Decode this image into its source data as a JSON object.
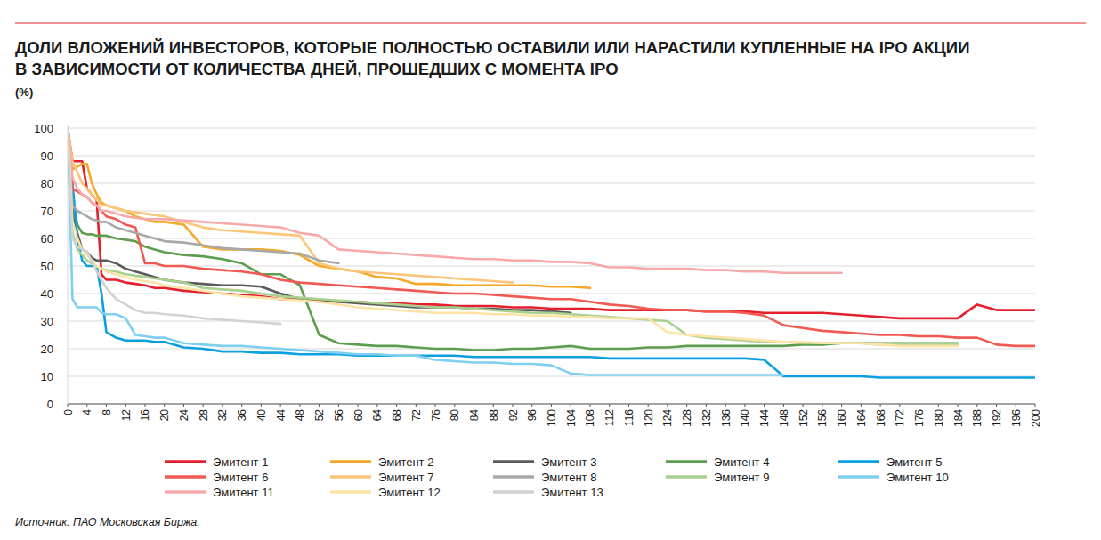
{
  "chart_data": {
    "type": "line",
    "title": [
      "ДОЛИ ВЛОЖЕНИЙ ИНВЕСТОРОВ, КОТОРЫЕ ПОЛНОСТЬЮ ОСТАВИЛИ ИЛИ НАРАСТИЛИ КУПЛЕННЫЕ НА IPO АКЦИИ",
      "В ЗАВИСИМОСТИ ОТ КОЛИЧЕСТВА ДНЕЙ, ПРОШЕДШИХ С МОМЕНТА IPO"
    ],
    "y_label": "(%)",
    "source": "Источник: ПАО Московская Биржа.",
    "grid": true,
    "legend": "bottom",
    "xlim": [
      0,
      200
    ],
    "ylim": [
      0,
      100
    ],
    "yticks": [
      0,
      10,
      20,
      30,
      40,
      50,
      60,
      70,
      80,
      90,
      100
    ],
    "xticks": [
      0,
      4,
      8,
      12,
      16,
      20,
      24,
      28,
      32,
      36,
      40,
      44,
      48,
      52,
      56,
      60,
      64,
      68,
      72,
      76,
      80,
      84,
      88,
      92,
      96,
      100,
      104,
      108,
      112,
      116,
      120,
      124,
      128,
      132,
      136,
      140,
      144,
      148,
      152,
      156,
      160,
      164,
      168,
      172,
      176,
      180,
      184,
      188,
      192,
      196,
      200
    ],
    "x": [
      0,
      1,
      2,
      3,
      4,
      5,
      6,
      7,
      8,
      10,
      12,
      14,
      16,
      18,
      20,
      24,
      28,
      32,
      36,
      40,
      44,
      48,
      52,
      56,
      60,
      64,
      68,
      72,
      76,
      80,
      84,
      88,
      92,
      96,
      100,
      104,
      108,
      112,
      116,
      120,
      124,
      128,
      132,
      136,
      140,
      144,
      148,
      152,
      156,
      160,
      164,
      168,
      172,
      176,
      180,
      184,
      188,
      192,
      196,
      200
    ],
    "series": [
      {
        "name": "Эмитент 1",
        "color": "#e3202c",
        "values": [
          100,
          88,
          88,
          88,
          78,
          76,
          74,
          47,
          45,
          45,
          44,
          43.5,
          43,
          42,
          42,
          41,
          40.5,
          40,
          39.5,
          39,
          38,
          38,
          37.5,
          37,
          37,
          36.5,
          36.5,
          36,
          36,
          35.5,
          35.5,
          35.5,
          35,
          35,
          34.5,
          34.5,
          34.5,
          34,
          34,
          34,
          34,
          34,
          33.5,
          33.5,
          33.5,
          33,
          33,
          33,
          33,
          32.5,
          32,
          31.5,
          31,
          31,
          31,
          31,
          36,
          34,
          34,
          34
        ]
      },
      {
        "name": "Эмитент 2",
        "color": "#f5a828",
        "values": [
          100,
          85,
          86,
          87,
          87,
          80,
          76,
          73,
          72,
          71,
          70,
          68,
          67,
          66,
          66,
          65,
          57,
          56,
          56,
          56,
          55.5,
          54,
          50,
          49,
          48,
          46,
          45.5,
          43.5,
          43.5,
          43,
          43,
          43,
          43,
          43,
          42.5,
          42.5,
          42,
          null,
          null,
          null,
          null,
          null,
          null,
          null,
          null,
          null,
          null,
          null,
          null,
          null,
          null,
          null,
          null,
          null,
          null,
          null,
          null,
          null,
          null,
          null
        ]
      },
      {
        "name": "Эмитент 3",
        "color": "#5b5b5b",
        "values": [
          100,
          70,
          62,
          56,
          55,
          53,
          52,
          52,
          52,
          51,
          49,
          48,
          47,
          46,
          45,
          44,
          43.5,
          43,
          43,
          42.5,
          40,
          38,
          37,
          37,
          36.5,
          36,
          35.5,
          35,
          35,
          35,
          34.5,
          34.5,
          34,
          34,
          33.5,
          33,
          null,
          null,
          null,
          null,
          null,
          null,
          null,
          null,
          null,
          null,
          null,
          null,
          null,
          null,
          null,
          null,
          null,
          null,
          null,
          null,
          null,
          null,
          null,
          null
        ]
      },
      {
        "name": "Эмитент 4",
        "color": "#5c9e4e",
        "values": [
          100,
          75,
          65,
          62,
          61.5,
          61.5,
          61,
          61,
          61,
          60,
          59.5,
          59,
          57,
          56,
          55,
          54,
          53.5,
          52.5,
          51,
          47,
          47,
          43,
          25,
          22,
          21.5,
          21,
          21,
          20.5,
          20,
          20,
          19.5,
          19.5,
          20,
          20,
          20.5,
          21,
          20,
          20,
          20,
          20.5,
          20.5,
          21,
          21,
          21,
          21,
          21,
          21,
          21.5,
          21.5,
          22,
          22,
          22,
          22,
          22,
          22,
          22,
          null,
          null,
          null,
          null
        ]
      },
      {
        "name": "Эмитент 5",
        "color": "#0aa0e0",
        "values": [
          100,
          80,
          60,
          52,
          50,
          50,
          50,
          40,
          26,
          24,
          23,
          23,
          23,
          22.5,
          22.5,
          20.5,
          20,
          19,
          19,
          18.5,
          18.5,
          18,
          18,
          18,
          17.5,
          17.5,
          17.5,
          17.5,
          17.5,
          17.5,
          17,
          17,
          17,
          17,
          17,
          17,
          17,
          16.5,
          16.5,
          16.5,
          16.5,
          16.5,
          16.5,
          16.5,
          16.5,
          16,
          10,
          10,
          10,
          10,
          10,
          9.5,
          9.5,
          9.5,
          9.5,
          9.5,
          9.5,
          9.5,
          9.5,
          9.5
        ]
      },
      {
        "name": "Эмитент 6",
        "color": "#f05a52",
        "values": [
          100,
          78,
          77,
          76,
          75,
          73,
          72,
          70,
          68,
          67,
          65,
          64,
          51,
          51,
          50,
          50,
          49,
          48.5,
          48,
          47,
          45,
          44,
          43.5,
          43,
          42.5,
          42,
          41.5,
          41,
          40.5,
          40,
          40,
          39.5,
          39,
          38.5,
          38,
          38,
          37,
          36,
          35.5,
          34.5,
          34,
          34,
          33.5,
          33.5,
          33,
          32,
          28.5,
          27.5,
          26.5,
          26,
          25.5,
          25,
          25,
          24.5,
          24.5,
          24,
          24,
          21.5,
          21,
          21
        ]
      },
      {
        "name": "Эмитент 7",
        "color": "#fbc57a",
        "values": [
          100,
          88,
          84,
          80,
          78,
          76,
          74,
          72,
          72,
          71,
          70,
          69.5,
          69,
          68.5,
          68,
          66,
          64,
          63,
          62.5,
          62,
          61.5,
          61,
          51,
          49,
          48,
          47.5,
          47,
          46.5,
          46,
          45.5,
          45,
          44.5,
          44,
          null,
          null,
          null,
          null,
          null,
          null,
          null,
          null,
          null,
          null,
          null,
          null,
          null,
          null,
          null,
          null,
          null,
          null,
          null,
          null,
          null,
          null,
          null,
          null,
          null,
          null,
          null
        ]
      },
      {
        "name": "Эмитент 8",
        "color": "#a8a8a8",
        "values": [
          100,
          72,
          70,
          69,
          68,
          67,
          66.5,
          66,
          66,
          64,
          63,
          62,
          61,
          60,
          59,
          58.5,
          57.5,
          56.5,
          56,
          55.5,
          55,
          54.5,
          52,
          51,
          null,
          null,
          null,
          null,
          null,
          null,
          null,
          null,
          null,
          null,
          null,
          null,
          null,
          null,
          null,
          null,
          null,
          null,
          null,
          null,
          null,
          null,
          null,
          null,
          null,
          null,
          null,
          null,
          null,
          null,
          null,
          null,
          null,
          null,
          null,
          null
        ]
      },
      {
        "name": "Эмитент 9",
        "color": "#a9d08e",
        "values": [
          100,
          62,
          56,
          54,
          52,
          51,
          50,
          49,
          48.5,
          48,
          47,
          46.5,
          46,
          45.5,
          45,
          44,
          42,
          41.5,
          41,
          40,
          39,
          38.5,
          38,
          37.5,
          37,
          36.5,
          36,
          35.5,
          35,
          35,
          34.5,
          34,
          33.5,
          33,
          33,
          32.5,
          32,
          31.5,
          31,
          30.5,
          30,
          25,
          24,
          23.5,
          23,
          22.5,
          22.5,
          22,
          22,
          22,
          22,
          21.5,
          21.5,
          21.5,
          21.5,
          21.5,
          null,
          null,
          null,
          null
        ]
      },
      {
        "name": "Эмитент 10",
        "color": "#7fd0f0",
        "values": [
          100,
          38,
          35,
          35,
          35,
          35,
          35,
          33,
          32.5,
          32.5,
          31,
          25,
          24.5,
          24,
          24,
          22,
          21.5,
          21,
          21,
          20.5,
          20,
          19.5,
          19,
          18.5,
          18,
          18,
          17.5,
          17.5,
          16,
          15.5,
          15,
          15,
          14.5,
          14.5,
          14,
          11,
          10.5,
          10.5,
          10.5,
          10.5,
          10.5,
          10.5,
          10.5,
          10.5,
          10.5,
          10.5,
          10.5,
          null,
          null,
          null,
          null,
          null,
          null,
          null,
          null,
          null,
          null,
          null,
          null,
          null
        ]
      },
      {
        "name": "Эмитент 11",
        "color": "#f7a9aa",
        "values": [
          100,
          82,
          78,
          76,
          75,
          73,
          72,
          70,
          70,
          69,
          68,
          67.5,
          67,
          67,
          67,
          66.5,
          66,
          65.5,
          65,
          64.5,
          64,
          62,
          61,
          56,
          55.5,
          55,
          54.5,
          54,
          53.5,
          53,
          52.5,
          52.5,
          52,
          52,
          51.5,
          51.5,
          51,
          49.5,
          49.5,
          49,
          49,
          49,
          48.5,
          48.5,
          48,
          48,
          47.5,
          47.5,
          47.5,
          47.5,
          null,
          null,
          null,
          null,
          null,
          null,
          null,
          null,
          null,
          null
        ]
      },
      {
        "name": "Эмитент 12",
        "color": "#fde4a6",
        "values": [
          100,
          66,
          60,
          56,
          54,
          52,
          50,
          49,
          48,
          47,
          46,
          45,
          44.5,
          44,
          43,
          42,
          41,
          40,
          39,
          38.5,
          38,
          37.5,
          37,
          36,
          35,
          34.5,
          34,
          33.5,
          33,
          33,
          33,
          32.5,
          32.5,
          32,
          32,
          31.5,
          31.5,
          31,
          31,
          31,
          26,
          25,
          24.5,
          24,
          23.5,
          23,
          22.5,
          22.5,
          22,
          22,
          22,
          21.5,
          21,
          21,
          21,
          21,
          null,
          null,
          null,
          null
        ]
      },
      {
        "name": "Эмитент 13",
        "color": "#d2d2d2",
        "values": [
          100,
          60,
          57,
          56,
          55,
          52,
          48,
          45,
          42,
          38,
          36,
          34,
          33,
          33,
          32.5,
          32,
          31,
          30.5,
          30,
          29.5,
          29,
          null,
          null,
          null,
          null,
          null,
          null,
          null,
          null,
          null,
          null,
          null,
          null,
          null,
          null,
          null,
          null,
          null,
          null,
          null,
          null,
          null,
          null,
          null,
          null,
          null,
          null,
          null,
          null,
          null,
          null,
          null,
          null,
          null,
          null,
          null,
          null,
          null,
          null,
          null
        ]
      }
    ]
  }
}
